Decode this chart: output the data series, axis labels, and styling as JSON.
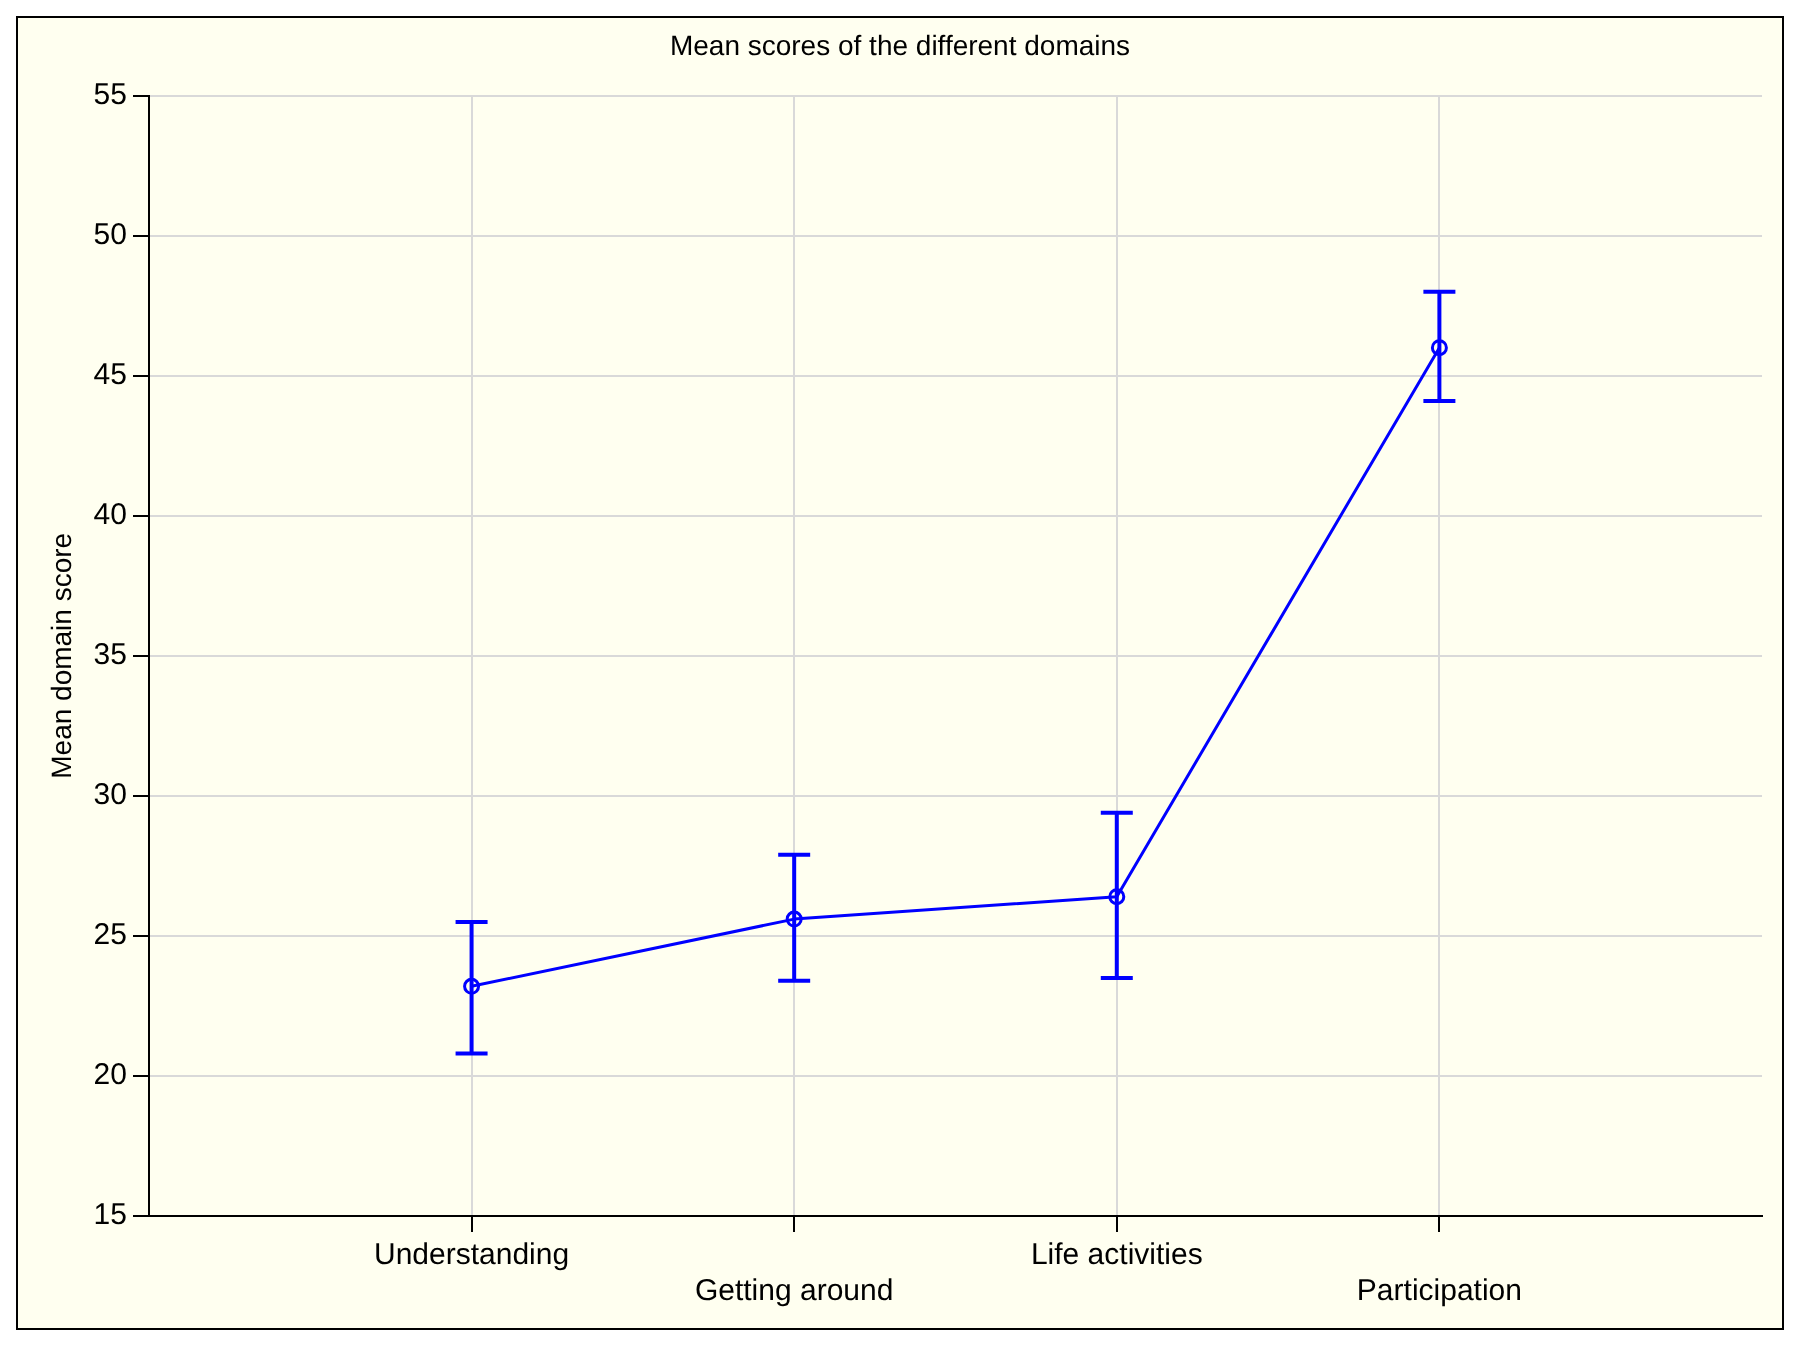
{
  "chart_data": {
    "type": "line",
    "title": "Mean scores of the different domains",
    "ylabel": "Mean domain score",
    "categories": [
      "Understanding",
      "Getting around",
      "Life activities",
      "Participation"
    ],
    "series": [
      {
        "color": "#0000ff",
        "values": [
          23.2,
          25.6,
          26.4,
          46.0
        ],
        "errors": [
          [
            20.8,
            25.5
          ],
          [
            23.4,
            27.9
          ],
          [
            23.5,
            29.4
          ],
          [
            44.1,
            48.0
          ]
        ]
      }
    ],
    "ylim": [
      15,
      55
    ],
    "yticks": [
      15,
      20,
      25,
      30,
      35,
      40,
      45,
      50,
      55
    ],
    "grid": true,
    "legend": false,
    "marker": "circle",
    "line_style": "solid"
  }
}
